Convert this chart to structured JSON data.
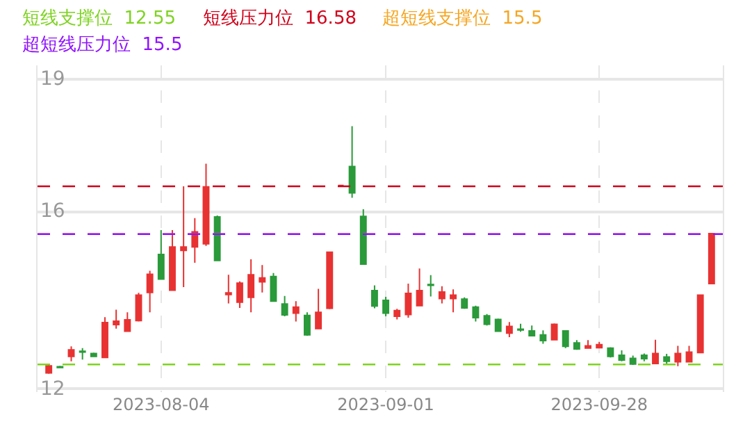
{
  "chart_data": {
    "type": "candlestick",
    "categories": [
      null,
      null,
      null,
      null,
      null,
      null,
      null,
      null,
      null,
      null,
      "2023-08-04",
      null,
      null,
      null,
      null,
      null,
      null,
      null,
      null,
      null,
      null,
      null,
      null,
      null,
      null,
      null,
      null,
      null,
      null,
      null,
      "2023-09-01",
      null,
      null,
      null,
      null,
      null,
      null,
      null,
      null,
      null,
      null,
      null,
      null,
      null,
      null,
      null,
      null,
      null,
      null,
      "2023-09-28",
      null,
      null,
      null,
      null,
      null,
      null,
      null,
      null,
      null,
      null
    ],
    "ohlc": [
      [
        12.36,
        12.55,
        12.34,
        12.52
      ],
      [
        12.5,
        12.52,
        12.47,
        12.48
      ],
      [
        12.73,
        12.96,
        12.62,
        12.88
      ],
      [
        12.85,
        12.92,
        12.66,
        12.83
      ],
      [
        12.8,
        12.82,
        12.72,
        12.73
      ],
      [
        12.71,
        13.62,
        12.71,
        13.5
      ],
      [
        13.45,
        13.79,
        13.36,
        13.53
      ],
      [
        13.3,
        13.73,
        13.3,
        13.56
      ],
      [
        13.54,
        14.17,
        13.52,
        14.12
      ],
      [
        14.18,
        14.67,
        13.73,
        14.59
      ],
      [
        15.04,
        15.59,
        14.48,
        14.48
      ],
      [
        14.23,
        15.59,
        14.23,
        15.21
      ],
      [
        15.13,
        16.58,
        14.3,
        15.21
      ],
      [
        15.21,
        15.86,
        14.85,
        15.55
      ],
      [
        15.28,
        17.09,
        15.23,
        16.57
      ],
      [
        15.89,
        15.92,
        14.9,
        14.9
      ],
      [
        14.13,
        14.58,
        13.93,
        14.17
      ],
      [
        13.96,
        14.43,
        13.83,
        14.39
      ],
      [
        14.07,
        14.93,
        13.73,
        14.58
      ],
      [
        14.42,
        14.8,
        14.18,
        14.51
      ],
      [
        14.54,
        14.62,
        13.98,
        13.98
      ],
      [
        13.92,
        14.1,
        13.64,
        13.67
      ],
      [
        13.71,
        13.98,
        13.52,
        13.85
      ],
      [
        13.66,
        13.73,
        13.2,
        13.22
      ],
      [
        13.36,
        14.26,
        13.36,
        13.73
      ],
      [
        13.82,
        15.09,
        13.8,
        15.09
      ],
      [
        16.6,
        16.6,
        16.6,
        16.6
      ],
      [
        17.03,
        17.94,
        16.32,
        16.43
      ],
      [
        15.9,
        16.06,
        14.82,
        14.82
      ],
      [
        14.22,
        14.34,
        13.82,
        13.87
      ],
      [
        14.0,
        14.08,
        13.64,
        13.71
      ],
      [
        13.64,
        13.81,
        13.57,
        13.77
      ],
      [
        13.68,
        14.38,
        13.61,
        14.16
      ],
      [
        13.88,
        14.72,
        13.88,
        14.22
      ],
      [
        14.36,
        14.57,
        14.09,
        14.34
      ],
      [
        14.04,
        14.32,
        13.93,
        14.19
      ],
      [
        14.04,
        14.25,
        13.73,
        14.12
      ],
      [
        14.03,
        14.07,
        13.81,
        13.83
      ],
      [
        13.85,
        13.88,
        13.52,
        13.61
      ],
      [
        13.65,
        13.69,
        13.43,
        13.46
      ],
      [
        13.57,
        13.59,
        13.29,
        13.3
      ],
      [
        13.26,
        13.51,
        13.17,
        13.41
      ],
      [
        13.35,
        13.47,
        13.29,
        13.33
      ],
      [
        13.31,
        13.43,
        13.19,
        13.2
      ],
      [
        13.22,
        13.32,
        13.02,
        13.09
      ],
      [
        13.11,
        13.48,
        13.11,
        13.46
      ],
      [
        13.31,
        13.31,
        12.92,
        12.96
      ],
      [
        13.04,
        13.1,
        12.88,
        12.9
      ],
      [
        12.92,
        13.1,
        12.92,
        12.97
      ],
      [
        12.93,
        13.06,
        12.92,
        13.0
      ],
      [
        12.92,
        12.94,
        12.71,
        12.73
      ],
      [
        12.76,
        12.87,
        12.62,
        12.65
      ],
      [
        12.69,
        12.75,
        12.54,
        12.56
      ],
      [
        12.76,
        12.8,
        12.62,
        12.68
      ],
      [
        12.57,
        13.11,
        12.57,
        12.8
      ],
      [
        12.72,
        12.79,
        12.54,
        12.62
      ],
      [
        12.61,
        12.97,
        12.51,
        12.8
      ],
      [
        12.61,
        12.97,
        12.61,
        12.83
      ],
      [
        12.82,
        14.12,
        12.82,
        14.12
      ],
      [
        14.38,
        15.51,
        14.38,
        15.51
      ]
    ],
    "colors": [
      "#e83232",
      "#2a9a3a",
      "#e83232",
      "#2a9a3a",
      "#2a9a3a",
      "#e83232",
      "#e83232",
      "#e83232",
      "#e83232",
      "#e83232",
      "#2a9a3a",
      "#e83232",
      "#e83232",
      "#e83232",
      "#e83232",
      "#2a9a3a",
      "#e83232",
      "#e83232",
      "#e83232",
      "#e83232",
      "#2a9a3a",
      "#2a9a3a",
      "#e83232",
      "#2a9a3a",
      "#e83232",
      "#e83232",
      "#e83232",
      "#2a9a3a",
      "#2a9a3a",
      "#2a9a3a",
      "#2a9a3a",
      "#e83232",
      "#e83232",
      "#e83232",
      "#2a9a3a",
      "#e83232",
      "#e83232",
      "#2a9a3a",
      "#2a9a3a",
      "#2a9a3a",
      "#2a9a3a",
      "#e83232",
      "#2a9a3a",
      "#2a9a3a",
      "#2a9a3a",
      "#e83232",
      "#2a9a3a",
      "#2a9a3a",
      "#e83232",
      "#e83232",
      "#2a9a3a",
      "#2a9a3a",
      "#2a9a3a",
      "#2a9a3a",
      "#e83232",
      "#2a9a3a",
      "#e83232",
      "#e83232",
      "#e83232",
      "#e83232"
    ],
    "ylim": [
      11.926,
      19.316
    ],
    "yticks": [
      12,
      16,
      19
    ],
    "grid": true,
    "ref_lines": [
      {
        "axis": "y",
        "value": 12.55,
        "label": "短线支撑位  12.55",
        "color": "#7ed321",
        "line_style": "dashed"
      },
      {
        "axis": "y",
        "value": 16.58,
        "label": "短线压力位  16.58",
        "color": "#d0021b",
        "line_style": "dashed"
      },
      {
        "axis": "y",
        "value": 15.5,
        "label": "超短线支撑位  15.5",
        "color": "#f5a623",
        "line_style": "dashed"
      },
      {
        "axis": "y",
        "value": 15.5,
        "label": "超短线压力位  15.5",
        "color": "#9013fe",
        "line_style": "dashed"
      }
    ]
  }
}
